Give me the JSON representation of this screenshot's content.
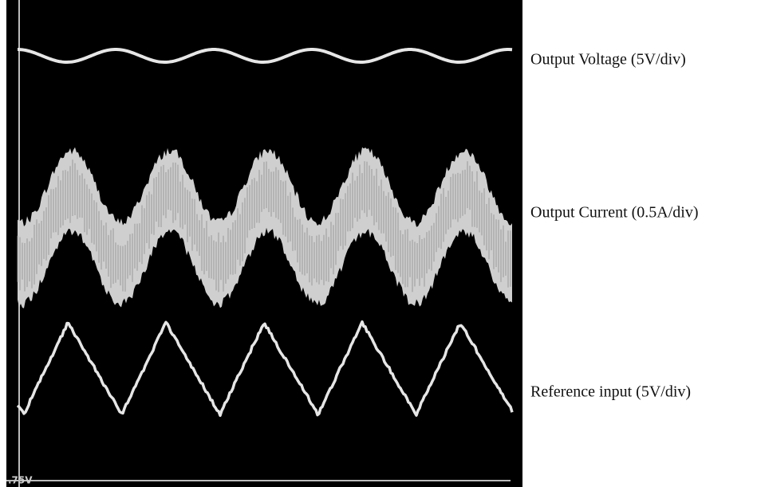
{
  "scope": {
    "marker": ".75V"
  },
  "traces": [
    {
      "label": "Output Voltage (5V/div)"
    },
    {
      "label": "Output Current (0.5A/div)"
    },
    {
      "label": "Reference input (5V/div)"
    }
  ]
}
